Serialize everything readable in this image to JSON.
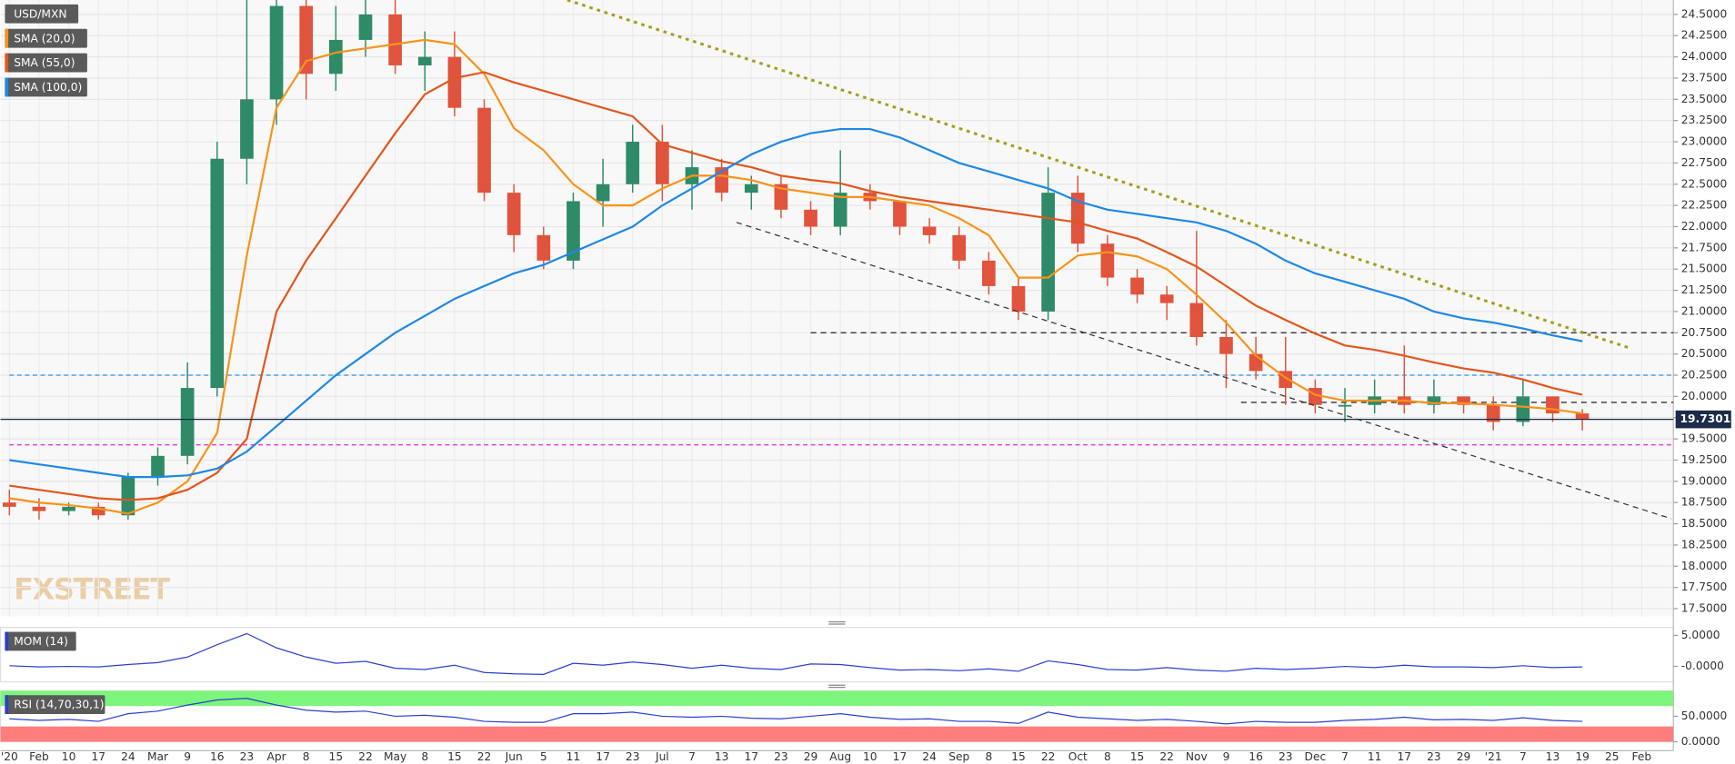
{
  "chart_data": [
    {
      "type": "candlestick",
      "title": "USD/MXN",
      "watermark": "FXSTREET",
      "categories": [
        "'20",
        "Feb",
        "10",
        "17",
        "24",
        "Mar",
        "9",
        "16",
        "23",
        "Apr",
        "8",
        "15",
        "22",
        "May",
        "8",
        "15",
        "22",
        "Jun",
        "5",
        "11",
        "17",
        "23",
        "Jul",
        "7",
        "13",
        "17",
        "23",
        "29",
        "Aug",
        "10",
        "17",
        "24",
        "Sep",
        "8",
        "15",
        "22",
        "Oct",
        "8",
        "15",
        "22",
        "Nov",
        "9",
        "16",
        "23",
        "Dec",
        "7",
        "11",
        "17",
        "23",
        "29",
        "'21",
        "7",
        "13",
        "19",
        "25",
        "Feb"
      ],
      "open": [
        18.75,
        18.7,
        18.65,
        18.7,
        18.6,
        19.05,
        19.3,
        20.1,
        22.8,
        23.5,
        24.6,
        23.8,
        24.2,
        24.5,
        23.9,
        24.0,
        23.4,
        22.4,
        21.9,
        21.6,
        22.3,
        22.5,
        23.0,
        22.5,
        22.7,
        22.4,
        22.5,
        22.2,
        22.0,
        22.4,
        22.3,
        22.0,
        21.9,
        21.6,
        21.3,
        21.0,
        22.4,
        21.8,
        21.4,
        21.2,
        21.1,
        20.7,
        20.5,
        20.3,
        20.1,
        19.9,
        19.9,
        20.0,
        19.9,
        20.0,
        19.9,
        19.7,
        20.0,
        19.8,
        null,
        null
      ],
      "high": [
        18.9,
        18.8,
        18.75,
        18.75,
        19.1,
        19.4,
        20.4,
        23.0,
        25.4,
        25.0,
        24.9,
        24.6,
        25.0,
        24.8,
        24.3,
        24.3,
        23.5,
        22.5,
        22.0,
        22.4,
        22.8,
        23.2,
        23.2,
        22.9,
        22.8,
        22.6,
        22.6,
        22.3,
        22.9,
        22.5,
        22.3,
        22.1,
        22.0,
        21.7,
        21.4,
        22.7,
        22.6,
        21.9,
        21.5,
        21.3,
        21.95,
        20.9,
        20.7,
        20.7,
        20.2,
        20.1,
        20.2,
        20.6,
        20.2,
        20.0,
        20.0,
        20.2,
        20.0,
        19.85,
        null,
        null
      ],
      "low": [
        18.6,
        18.55,
        18.6,
        18.55,
        18.55,
        18.95,
        19.2,
        20.0,
        22.5,
        23.2,
        23.5,
        23.6,
        24.0,
        23.8,
        23.6,
        23.3,
        22.3,
        21.7,
        21.5,
        21.5,
        22.0,
        22.4,
        22.3,
        22.2,
        22.3,
        22.2,
        22.1,
        21.9,
        21.9,
        22.2,
        21.9,
        21.8,
        21.5,
        21.2,
        20.9,
        20.9,
        21.7,
        21.3,
        21.1,
        20.9,
        20.6,
        20.1,
        20.2,
        19.9,
        19.8,
        19.7,
        19.8,
        19.8,
        19.8,
        19.8,
        19.6,
        19.65,
        19.7,
        19.6,
        null,
        null
      ],
      "close": [
        18.7,
        18.65,
        18.7,
        18.6,
        19.05,
        19.3,
        20.1,
        22.8,
        23.5,
        24.6,
        23.8,
        24.2,
        24.5,
        23.9,
        24.0,
        23.4,
        22.4,
        21.9,
        21.6,
        22.3,
        22.5,
        23.0,
        22.5,
        22.7,
        22.4,
        22.5,
        22.2,
        22.0,
        22.4,
        22.3,
        22.0,
        21.9,
        21.6,
        21.3,
        21.0,
        22.4,
        21.8,
        21.4,
        21.2,
        21.1,
        20.7,
        20.5,
        20.3,
        20.1,
        19.9,
        19.9,
        20.0,
        19.9,
        20.0,
        19.9,
        19.7,
        20.0,
        19.8,
        19.73,
        null,
        null
      ],
      "up_color": "#2f8a67",
      "down_color": "#e0533d",
      "series": [
        {
          "name": "SMA (20,0)",
          "color": "#f7931a",
          "values": [
            18.8,
            18.75,
            18.72,
            18.68,
            18.62,
            18.75,
            19.0,
            19.57,
            21.66,
            23.4,
            23.95,
            24.05,
            24.1,
            24.15,
            24.2,
            24.15,
            23.8,
            23.16,
            22.9,
            22.5,
            22.25,
            22.25,
            22.45,
            22.6,
            22.6,
            22.55,
            22.45,
            22.4,
            22.35,
            22.35,
            22.3,
            22.25,
            22.1,
            21.9,
            21.4,
            21.4,
            21.66,
            21.7,
            21.65,
            21.5,
            21.2,
            20.87,
            20.48,
            20.22,
            20.02,
            19.95,
            19.95,
            19.95,
            19.92,
            19.92,
            19.9,
            19.88,
            19.85,
            19.8,
            null,
            null
          ]
        },
        {
          "name": "SMA (55,0)",
          "color": "#e2561e",
          "values": [
            18.95,
            18.9,
            18.85,
            18.8,
            18.78,
            18.8,
            18.9,
            19.1,
            19.5,
            21.0,
            21.6,
            22.1,
            22.6,
            23.1,
            23.56,
            23.75,
            23.82,
            23.7,
            23.6,
            23.5,
            23.4,
            23.3,
            22.97,
            22.87,
            22.77,
            22.7,
            22.6,
            22.55,
            22.51,
            22.42,
            22.35,
            22.3,
            22.25,
            22.2,
            22.15,
            22.1,
            22.05,
            21.95,
            21.86,
            21.7,
            21.53,
            21.3,
            21.07,
            20.9,
            20.74,
            20.6,
            20.55,
            20.48,
            20.4,
            20.33,
            20.28,
            20.2,
            20.1,
            20.02,
            null,
            null
          ]
        },
        {
          "name": "SMA (100,0)",
          "color": "#1e88e5",
          "values": [
            19.25,
            19.2,
            19.15,
            19.1,
            19.05,
            19.05,
            19.07,
            19.15,
            19.35,
            19.65,
            19.95,
            20.25,
            20.5,
            20.75,
            20.95,
            21.15,
            21.3,
            21.45,
            21.55,
            21.7,
            21.85,
            22.0,
            22.25,
            22.45,
            22.65,
            22.85,
            23.0,
            23.1,
            23.15,
            23.15,
            23.05,
            22.9,
            22.75,
            22.65,
            22.55,
            22.45,
            22.3,
            22.2,
            22.15,
            22.1,
            22.05,
            21.95,
            21.8,
            21.6,
            21.45,
            21.35,
            21.25,
            21.15,
            21.0,
            20.92,
            20.87,
            20.8,
            20.72,
            20.65,
            null,
            null
          ]
        }
      ],
      "ylim": [
        17.41,
        24.67
      ],
      "yticks": [
        {
          "value": 17.5,
          "label": "17.5000"
        },
        {
          "value": 17.75,
          "label": "17.7500"
        },
        {
          "value": 18,
          "label": "18.0000"
        },
        {
          "value": 18.25,
          "label": "18.2500"
        },
        {
          "value": 18.5,
          "label": "18.5000"
        },
        {
          "value": 18.75,
          "label": "18.7500"
        },
        {
          "value": 19,
          "label": "19.0000"
        },
        {
          "value": 19.25,
          "label": "19.2500"
        },
        {
          "value": 19.5,
          "label": "19.5000"
        },
        {
          "value": 19.75,
          "label": "19.7500"
        },
        {
          "value": 20,
          "label": "20.0000"
        },
        {
          "value": 20.25,
          "label": "20.2500"
        },
        {
          "value": 20.5,
          "label": "20.5000"
        },
        {
          "value": 20.75,
          "label": "20.7500"
        },
        {
          "value": 21,
          "label": "21.0000"
        },
        {
          "value": 21.25,
          "label": "21.2500"
        },
        {
          "value": 21.5,
          "label": "21.5000"
        },
        {
          "value": 21.75,
          "label": "21.7500"
        },
        {
          "value": 22,
          "label": "22.0000"
        },
        {
          "value": 22.25,
          "label": "22.2500"
        },
        {
          "value": 22.5,
          "label": "22.5000"
        },
        {
          "value": 22.75,
          "label": "22.7500"
        },
        {
          "value": 23,
          "label": "23.0000"
        },
        {
          "value": 23.25,
          "label": "23.2500"
        },
        {
          "value": 23.5,
          "label": "23.5000"
        },
        {
          "value": 23.75,
          "label": "23.7500"
        },
        {
          "value": 24,
          "label": "24.0000"
        },
        {
          "value": 24.25,
          "label": "24.2500"
        },
        {
          "value": 24.5,
          "label": "24.5000"
        }
      ],
      "grid": true,
      "last_price": {
        "value": 19.7301,
        "label": "19.73010",
        "color": "#1c2b4a"
      },
      "hlines": [
        {
          "value": 20.25,
          "color": "#4aa3e8",
          "dash": "4 3",
          "start": 0
        },
        {
          "value": 19.43,
          "color": "#e040e0",
          "dash": "4 3",
          "start": 0
        },
        {
          "value": 20.75,
          "color": "#333333",
          "dash": "5 4",
          "start": 27
        },
        {
          "value": 19.93,
          "color": "#333333",
          "dash": "5 4",
          "start": 41.5
        }
      ],
      "trendlines": [
        {
          "from": [
            18.8,
            24.67
          ],
          "to": [
            54.6,
            20.57
          ],
          "color": "#a0a020",
          "dash": "3 4",
          "width": 2.5
        },
        {
          "from": [
            24.5,
            22.05
          ],
          "to": [
            56,
            18.56
          ],
          "color": "#333333",
          "dash": "5 4",
          "width": 1
        }
      ]
    },
    {
      "type": "line",
      "series": [
        {
          "name": "MOM (14)",
          "color": "#2b3fcf",
          "values": [
            0.1,
            -0.1,
            0,
            -0.1,
            0.3,
            0.6,
            1.5,
            3.5,
            5.3,
            3.0,
            1.5,
            0.5,
            0.8,
            -0.3,
            -0.5,
            0.2,
            -1.0,
            -1.2,
            -1.3,
            0.5,
            0.2,
            0.7,
            0.3,
            -0.3,
            0.2,
            -0.3,
            -0.5,
            0.4,
            0.3,
            -0.2,
            -0.6,
            -0.5,
            -0.7,
            -0.4,
            -0.8,
            0.9,
            0.3,
            -0.5,
            -0.6,
            -0.2,
            -0.6,
            -0.8,
            -0.3,
            -0.5,
            -0.3,
            0,
            -0.2,
            0.2,
            -0.1,
            -0.1,
            -0.2,
            0.1,
            -0.2,
            -0.1,
            null,
            null
          ]
        }
      ],
      "ylim": [
        -2.5,
        6.3
      ],
      "yticks": [
        {
          "value": 0,
          "label": "-0.0000"
        },
        {
          "value": 5,
          "label": "5.0000"
        }
      ]
    },
    {
      "type": "line",
      "series": [
        {
          "name": "RSI (14,70,30,1)",
          "color": "#2b3fcf",
          "values": [
            45,
            42,
            44,
            40,
            55,
            60,
            72,
            82,
            85,
            72,
            62,
            58,
            60,
            50,
            52,
            48,
            40,
            38,
            38,
            55,
            55,
            58,
            50,
            48,
            50,
            46,
            45,
            50,
            55,
            48,
            44,
            45,
            40,
            40,
            36,
            58,
            48,
            45,
            42,
            44,
            40,
            35,
            40,
            38,
            38,
            42,
            44,
            48,
            43,
            44,
            42,
            47,
            42,
            40,
            null,
            null
          ]
        }
      ],
      "ylim": [
        0,
        100
      ],
      "yticks": [
        {
          "value": 0,
          "label": "0.0000"
        },
        {
          "value": 50,
          "label": "50.0000"
        }
      ],
      "bands": [
        {
          "from": 70,
          "to": 100,
          "color": "#7cf57c"
        },
        {
          "from": 0,
          "to": 30,
          "color": "#ff7d7d"
        }
      ]
    }
  ]
}
